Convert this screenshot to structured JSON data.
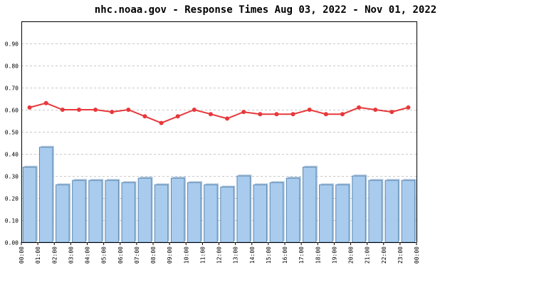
{
  "chart_data": {
    "type": "bar",
    "title": "nhc.noaa.gov - Response Times Aug 03, 2022 - Nov 01, 2022",
    "xlabel": "",
    "ylabel": "",
    "categories": [
      "00:00",
      "01:00",
      "02:00",
      "03:00",
      "04:00",
      "05:00",
      "06:00",
      "07:00",
      "08:00",
      "09:00",
      "10:00",
      "11:00",
      "12:00",
      "13:00",
      "14:00",
      "15:00",
      "16:00",
      "17:00",
      "18:00",
      "19:00",
      "20:00",
      "21:00",
      "22:00",
      "23:00"
    ],
    "x_tick_labels": [
      "00:00",
      "01:00",
      "02:00",
      "03:00",
      "04:00",
      "05:00",
      "06:00",
      "07:00",
      "08:00",
      "09:00",
      "10:00",
      "11:00",
      "12:00",
      "13:00",
      "14:00",
      "15:00",
      "16:00",
      "17:00",
      "18:00",
      "19:00",
      "20:00",
      "21:00",
      "22:00",
      "23:00",
      "00:00"
    ],
    "y_ticks": [
      0.0,
      0.1,
      0.2,
      0.3,
      0.4,
      0.5,
      0.6,
      0.7,
      0.8,
      0.9
    ],
    "y_tick_labels": [
      "0.00",
      "0.10",
      "0.20",
      "0.30",
      "0.40",
      "0.50",
      "0.60",
      "0.70",
      "0.80",
      "0.90"
    ],
    "ylim": [
      0,
      1.0
    ],
    "grid": true,
    "series": [
      {
        "type": "bar",
        "color": "#a8cbee",
        "edge_color": "#5a87b0",
        "values": [
          0.34,
          0.43,
          0.26,
          0.28,
          0.28,
          0.28,
          0.27,
          0.29,
          0.26,
          0.29,
          0.27,
          0.26,
          0.25,
          0.3,
          0.26,
          0.27,
          0.29,
          0.34,
          0.26,
          0.26,
          0.3,
          0.28,
          0.28,
          0.28
        ]
      },
      {
        "type": "line",
        "color": "#e8383b",
        "values": [
          0.61,
          0.63,
          0.6,
          0.6,
          0.6,
          0.59,
          0.6,
          0.57,
          0.54,
          0.57,
          0.6,
          0.58,
          0.56,
          0.59,
          0.58,
          0.58,
          0.58,
          0.6,
          0.58,
          0.58,
          0.61,
          0.6,
          0.59,
          0.61
        ]
      }
    ]
  }
}
